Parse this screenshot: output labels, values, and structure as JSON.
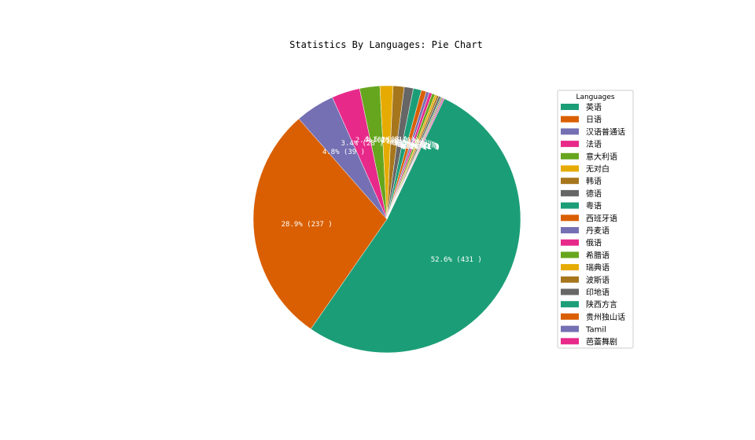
{
  "chart_data": {
    "type": "pie",
    "title": "Statistics By Languages: Pie Chart",
    "legend_title": "Languages",
    "legend_position": "right",
    "start_angle_deg": 64.5,
    "direction": "clockwise",
    "slices": [
      {
        "label": "英语",
        "value": 431,
        "color": "#1b9e77",
        "pct_label": "52.6% (431 )"
      },
      {
        "label": "日语",
        "value": 237,
        "color": "#d95f02",
        "pct_label": "28.9% (237 )"
      },
      {
        "label": "汉语普通话",
        "value": 39,
        "color": "#7570b3",
        "pct_label": "4.8% (39 )"
      },
      {
        "label": "法语",
        "value": 28,
        "color": "#e7298a",
        "pct_label": "3.4% (28 )"
      },
      {
        "label": "意大利语",
        "value": 20,
        "color": "#66a61e",
        "pct_label": "2.4% (20 )"
      },
      {
        "label": "无对白",
        "value": 13,
        "color": "#e6ab02",
        "pct_label": "1.6% (13 )"
      },
      {
        "label": "韩语",
        "value": 11,
        "color": "#a6761d",
        "pct_label": "1.3% (11 )"
      },
      {
        "label": "德语",
        "value": 9,
        "color": "#666666",
        "pct_label": "1.1% (9 )"
      },
      {
        "label": "粤语",
        "value": 8,
        "color": "#1b9e77",
        "pct_label": "1.0% (8 )"
      },
      {
        "label": "西班牙语",
        "value": 5,
        "color": "#d95f02",
        "pct_label": "0.6% (5 )"
      },
      {
        "label": "丹麦语",
        "value": 3,
        "color": "#7570b3",
        "pct_label": "0.4% (3 )"
      },
      {
        "label": "俄语",
        "value": 3,
        "color": "#e7298a",
        "pct_label": "0.4% (3 )"
      },
      {
        "label": "希腊语",
        "value": 3,
        "color": "#66a61e",
        "pct_label": "0.4% (3 )"
      },
      {
        "label": "瑞典语",
        "value": 2,
        "color": "#e6ab02",
        "pct_label": "0.2% (2 )"
      },
      {
        "label": "波斯语",
        "value": 2,
        "color": "#a6761d",
        "pct_label": "0.2% (2 )"
      },
      {
        "label": "印地语",
        "value": 2,
        "color": "#666666",
        "pct_label": "0.2% (2 )"
      },
      {
        "label": "陕西方言",
        "value": 1,
        "color": "#1b9e77",
        "pct_label": "0.1% (1 )"
      },
      {
        "label": "贵州独山话",
        "value": 1,
        "color": "#d95f02",
        "pct_label": "0.1% (1 )"
      },
      {
        "label": "Tamil",
        "value": 1,
        "color": "#7570b3",
        "pct_label": "0.1% (1 )"
      },
      {
        "label": "芭蕾舞剧",
        "value": 1,
        "color": "#e7298a",
        "pct_label": "0.1% (1 )"
      }
    ]
  }
}
